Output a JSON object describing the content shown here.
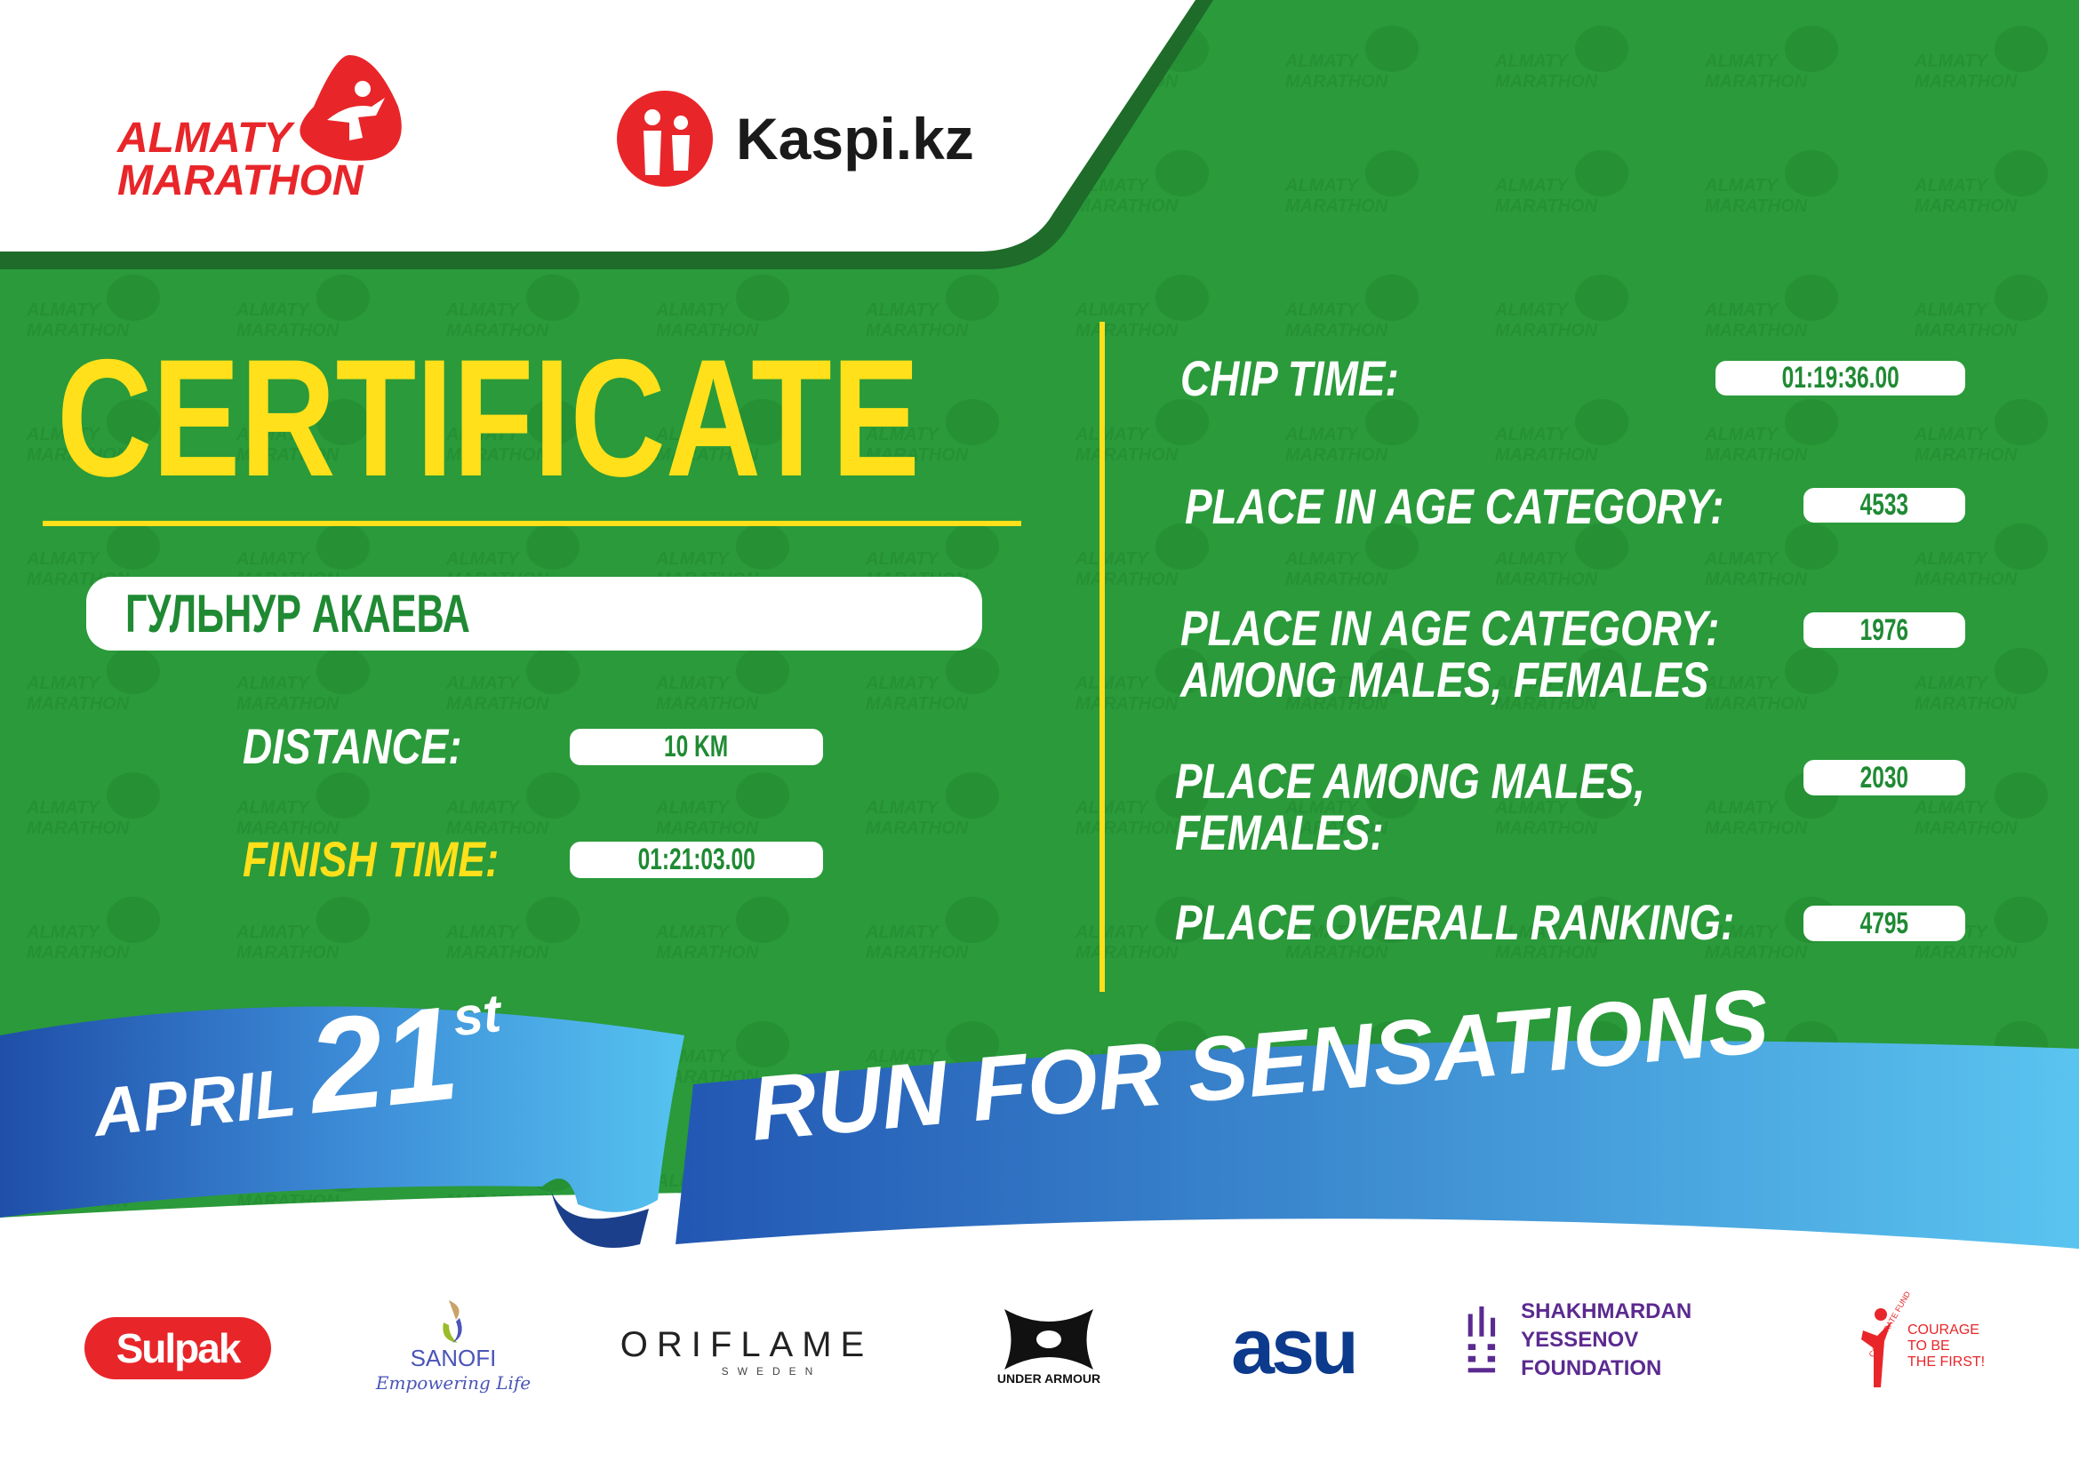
{
  "colors": {
    "green": "#2a9a3a",
    "dark_green": "#1e6b2a",
    "yellow": "#ffe01a",
    "white": "#ffffff",
    "ribbon_dark": "#1f4fa8",
    "ribbon_light": "#4fc0ee",
    "red": "#e8262a"
  },
  "header": {
    "organizer_logo": {
      "line1": "ALMATY",
      "line2": "MARATHON"
    },
    "sponsor_logo": {
      "name": "Kaspi.kz"
    }
  },
  "watermark": "ALMATY MARATHON",
  "certificate": {
    "title": "CERTIFICATE",
    "participant_name": "ГУЛЬНУР АКАЕВА",
    "distance_label": "DISTANCE:",
    "distance_value": "10 KM",
    "finish_time_label": "FINISH TIME:",
    "finish_time_value": "01:21:03.00"
  },
  "results": {
    "chip_time_label": "CHIP TIME:",
    "chip_time_value": "01:19:36.00",
    "age_category_label": "PLACE IN AGE CATEGORY:",
    "age_category_value": "4533",
    "age_gender_label_1": "PLACE IN AGE CATEGORY:",
    "age_gender_label_2": "AMONG MALES, FEMALES",
    "age_gender_value": "1976",
    "gender_label_1": "PLACE AMONG MALES,",
    "gender_label_2": "FEMALES:",
    "gender_value": "2030",
    "overall_label": "PLACE OVERALL RANKING:",
    "overall_value": "4795"
  },
  "ribbon": {
    "month": "APRIL",
    "day": "21",
    "suffix": "st",
    "slogan": "RUN FOR SENSATIONS"
  },
  "partners": [
    {
      "name": "Sulpak"
    },
    {
      "name": "SANOFI",
      "tagline": "Empowering Life"
    },
    {
      "name": "ORIFLAME",
      "sub": "SWEDEN"
    },
    {
      "name": "UNDER ARMOUR"
    },
    {
      "name": "asu"
    },
    {
      "name_1": "SHAKHMARDAN YESSENOV",
      "name_2": "FOUNDATION"
    },
    {
      "arc": "CORPORATE FUND",
      "line1": "COURAGE",
      "line2": "TO BE",
      "line3": "THE FIRST!"
    }
  ]
}
